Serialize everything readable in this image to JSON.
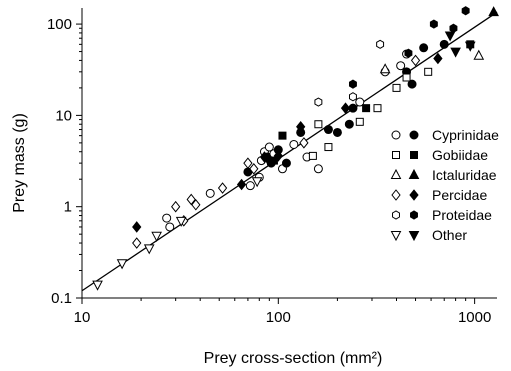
{
  "chart_data": {
    "type": "scatter",
    "title": "",
    "xlabel": "Prey cross-section (mm²)",
    "ylabel": "Prey mass (g)",
    "xscale": "log",
    "yscale": "log",
    "xlim": [
      10,
      1300
    ],
    "ylim": [
      0.1,
      150
    ],
    "xticks": [
      {
        "value": 10,
        "label": "10"
      },
      {
        "value": 100,
        "label": "100"
      },
      {
        "value": 1000,
        "label": "1000"
      }
    ],
    "yticks": [
      {
        "value": 0.1,
        "label": "0.1"
      },
      {
        "value": 1,
        "label": "1"
      },
      {
        "value": 10,
        "label": "10"
      },
      {
        "value": 100,
        "label": "100"
      }
    ],
    "grid": false,
    "legend_position": "right",
    "fit_line": {
      "x": [
        10,
        1300
      ],
      "y": [
        0.12,
        135
      ]
    },
    "legend_entries": [
      {
        "name": "Cyprinidae",
        "marker": "circle"
      },
      {
        "name": "Gobiidae",
        "marker": "square"
      },
      {
        "name": "Ictaluridae",
        "marker": "triangle-up"
      },
      {
        "name": "Percidae",
        "marker": "diamond"
      },
      {
        "name": "Proteidae",
        "marker": "hexagon"
      },
      {
        "name": "Other",
        "marker": "triangle-down"
      }
    ],
    "series": [
      {
        "name": "Cyprinidae",
        "marker": "circle",
        "points": [
          {
            "x": 27,
            "y": 0.75,
            "filled": false
          },
          {
            "x": 28,
            "y": 0.6,
            "filled": false
          },
          {
            "x": 45,
            "y": 1.4,
            "filled": false
          },
          {
            "x": 70,
            "y": 2.4,
            "filled": true
          },
          {
            "x": 72,
            "y": 1.7,
            "filled": false
          },
          {
            "x": 80,
            "y": 2.1,
            "filled": false
          },
          {
            "x": 82,
            "y": 3.2,
            "filled": false
          },
          {
            "x": 85,
            "y": 4.0,
            "filled": false
          },
          {
            "x": 88,
            "y": 3.5,
            "filled": true
          },
          {
            "x": 90,
            "y": 4.5,
            "filled": false
          },
          {
            "x": 92,
            "y": 3.0,
            "filled": true
          },
          {
            "x": 95,
            "y": 3.8,
            "filled": false
          },
          {
            "x": 100,
            "y": 4.2,
            "filled": true
          },
          {
            "x": 105,
            "y": 2.6,
            "filled": false
          },
          {
            "x": 110,
            "y": 3.0,
            "filled": true
          },
          {
            "x": 120,
            "y": 4.8,
            "filled": false
          },
          {
            "x": 130,
            "y": 6.5,
            "filled": true
          },
          {
            "x": 140,
            "y": 3.5,
            "filled": false
          },
          {
            "x": 160,
            "y": 2.6,
            "filled": false
          },
          {
            "x": 180,
            "y": 7.0,
            "filled": true
          },
          {
            "x": 200,
            "y": 6.5,
            "filled": true
          },
          {
            "x": 230,
            "y": 8.0,
            "filled": true
          },
          {
            "x": 240,
            "y": 12.0,
            "filled": true
          },
          {
            "x": 260,
            "y": 14.0,
            "filled": false
          },
          {
            "x": 350,
            "y": 30.0,
            "filled": false
          },
          {
            "x": 420,
            "y": 35.0,
            "filled": false
          },
          {
            "x": 450,
            "y": 30.0,
            "filled": true
          },
          {
            "x": 480,
            "y": 22.0,
            "filled": true
          },
          {
            "x": 450,
            "y": 47.0,
            "filled": false
          },
          {
            "x": 550,
            "y": 55.0,
            "filled": true
          },
          {
            "x": 700,
            "y": 60.0,
            "filled": true
          }
        ]
      },
      {
        "name": "Gobiidae",
        "marker": "square",
        "points": [
          {
            "x": 95,
            "y": 3.2,
            "filled": true
          },
          {
            "x": 105,
            "y": 6.0,
            "filled": true
          },
          {
            "x": 150,
            "y": 3.6,
            "filled": false
          },
          {
            "x": 160,
            "y": 8.0,
            "filled": false
          },
          {
            "x": 180,
            "y": 4.5,
            "filled": false
          },
          {
            "x": 260,
            "y": 8.5,
            "filled": false
          },
          {
            "x": 280,
            "y": 12.0,
            "filled": true
          },
          {
            "x": 320,
            "y": 12.0,
            "filled": false
          },
          {
            "x": 400,
            "y": 20.0,
            "filled": false
          },
          {
            "x": 450,
            "y": 26.0,
            "filled": false
          },
          {
            "x": 580,
            "y": 30.0,
            "filled": false
          },
          {
            "x": 950,
            "y": 60.0,
            "filled": true
          }
        ]
      },
      {
        "name": "Ictaluridae",
        "marker": "triangle-up",
        "points": [
          {
            "x": 350,
            "y": 32.0,
            "filled": false
          },
          {
            "x": 1050,
            "y": 45.0,
            "filled": false
          },
          {
            "x": 1250,
            "y": 135.0,
            "filled": true
          }
        ]
      },
      {
        "name": "Percidae",
        "marker": "diamond",
        "points": [
          {
            "x": 19,
            "y": 0.6,
            "filled": true
          },
          {
            "x": 19,
            "y": 0.4,
            "filled": false
          },
          {
            "x": 30,
            "y": 1.0,
            "filled": false
          },
          {
            "x": 33,
            "y": 0.7,
            "filled": false
          },
          {
            "x": 36,
            "y": 1.2,
            "filled": false
          },
          {
            "x": 38,
            "y": 1.05,
            "filled": false
          },
          {
            "x": 52,
            "y": 1.6,
            "filled": false
          },
          {
            "x": 65,
            "y": 1.75,
            "filled": true
          },
          {
            "x": 70,
            "y": 3.0,
            "filled": false
          },
          {
            "x": 75,
            "y": 2.6,
            "filled": false
          },
          {
            "x": 85,
            "y": 3.5,
            "filled": true
          },
          {
            "x": 90,
            "y": 3.2,
            "filled": true
          },
          {
            "x": 100,
            "y": 3.6,
            "filled": true
          },
          {
            "x": 130,
            "y": 7.5,
            "filled": true
          },
          {
            "x": 135,
            "y": 5.0,
            "filled": false
          },
          {
            "x": 220,
            "y": 12.0,
            "filled": true
          },
          {
            "x": 500,
            "y": 40.0,
            "filled": false
          },
          {
            "x": 650,
            "y": 42.0,
            "filled": true
          }
        ]
      },
      {
        "name": "Proteidae",
        "marker": "hexagon",
        "points": [
          {
            "x": 160,
            "y": 14.0,
            "filled": false
          },
          {
            "x": 240,
            "y": 16.0,
            "filled": false
          },
          {
            "x": 240,
            "y": 22.0,
            "filled": true
          },
          {
            "x": 330,
            "y": 60.0,
            "filled": false
          },
          {
            "x": 460,
            "y": 48.0,
            "filled": true
          },
          {
            "x": 620,
            "y": 100.0,
            "filled": true
          },
          {
            "x": 780,
            "y": 90.0,
            "filled": true
          },
          {
            "x": 900,
            "y": 140.0,
            "filled": true
          }
        ]
      },
      {
        "name": "Other",
        "marker": "triangle-down",
        "points": [
          {
            "x": 12,
            "y": 0.14,
            "filled": false
          },
          {
            "x": 16,
            "y": 0.24,
            "filled": false
          },
          {
            "x": 22,
            "y": 0.35,
            "filled": false
          },
          {
            "x": 24,
            "y": 0.48,
            "filled": false
          },
          {
            "x": 32,
            "y": 0.7,
            "filled": false
          },
          {
            "x": 78,
            "y": 1.9,
            "filled": false
          },
          {
            "x": 800,
            "y": 50.0,
            "filled": true
          },
          {
            "x": 950,
            "y": 58.0,
            "filled": true
          },
          {
            "x": 750,
            "y": 75.0,
            "filled": true
          }
        ]
      }
    ]
  }
}
